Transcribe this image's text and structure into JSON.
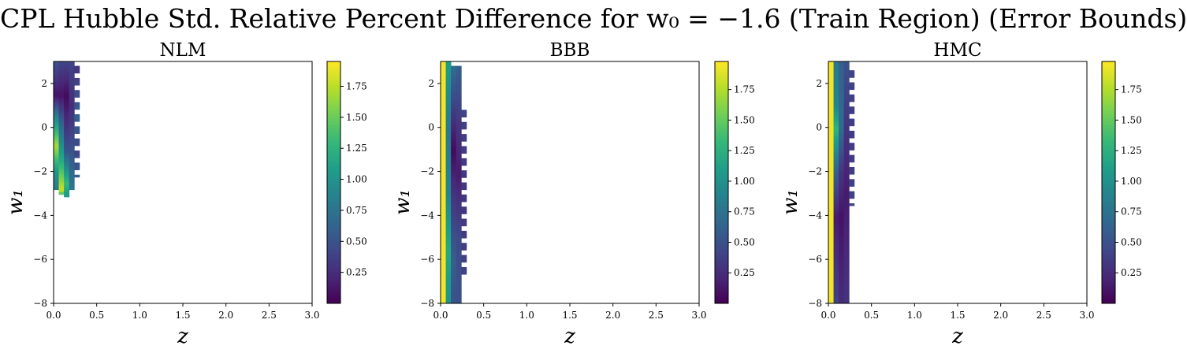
{
  "figure": {
    "title": "CPL Hubble Std. Relative Percent Difference for w₀ = −1.6 (Train Region) (Error Bounds)"
  },
  "colormap": {
    "name": "viridis",
    "stops": [
      "#440154",
      "#482878",
      "#3e4989",
      "#31688e",
      "#26828e",
      "#1f9e89",
      "#35b779",
      "#6ece58",
      "#b5de2b",
      "#fde725"
    ]
  },
  "chart_data": [
    {
      "type": "heatmap",
      "title": "NLM",
      "xlabel": "z",
      "ylabel": "w₁",
      "xlim": [
        0.0,
        3.0
      ],
      "ylim": [
        -8,
        3
      ],
      "xticks": [
        "0.0",
        "0.5",
        "1.0",
        "1.5",
        "2.0",
        "2.5",
        "3.0"
      ],
      "yticks": [
        "−8",
        "−6",
        "−4",
        "−2",
        "0",
        "2"
      ],
      "colorbar": {
        "min": 0.0,
        "max": 1.95,
        "ticks": [
          "0.25",
          "0.50",
          "0.75",
          "1.00",
          "1.25",
          "1.50",
          "1.75"
        ]
      },
      "z_col_width": 0.06,
      "w1_row_height": 0.11,
      "columns": [
        {
          "z": 0.0,
          "w1_from": -2.8,
          "w1_to": 3.0,
          "profile": [
            [
              3.0,
              0.5
            ],
            [
              1.5,
              0.1
            ],
            [
              0.5,
              0.9
            ],
            [
              -0.8,
              1.7
            ],
            [
              -2.0,
              1.0
            ],
            [
              -2.8,
              0.8
            ]
          ]
        },
        {
          "z": 0.06,
          "w1_from": -3.0,
          "w1_to": 3.0,
          "profile": [
            [
              3.0,
              0.4
            ],
            [
              1.5,
              0.1
            ],
            [
              0.0,
              0.7
            ],
            [
              -1.5,
              1.2
            ],
            [
              -2.8,
              1.8
            ],
            [
              -3.0,
              1.3
            ]
          ]
        },
        {
          "z": 0.12,
          "w1_from": -3.1,
          "w1_to": 3.0,
          "profile": [
            [
              3.0,
              0.4
            ],
            [
              1.5,
              0.05
            ],
            [
              0.0,
              0.3
            ],
            [
              -1.0,
              0.5
            ],
            [
              -2.5,
              1.3
            ],
            [
              -3.1,
              1.0
            ]
          ]
        },
        {
          "z": 0.18,
          "w1_from": -2.8,
          "w1_to": 3.0,
          "profile": [
            [
              3.0,
              0.4
            ],
            [
              1.0,
              0.25
            ],
            [
              -1.0,
              0.5
            ],
            [
              -2.8,
              0.8
            ]
          ]
        },
        {
          "z": 0.24,
          "w1_from": -2.2,
          "w1_to": 2.8,
          "profile": [
            [
              2.8,
              0.3
            ],
            [
              0.5,
              0.6
            ],
            [
              -1.0,
              0.4
            ],
            [
              -2.2,
              0.6
            ]
          ],
          "stripes": true
        }
      ]
    },
    {
      "type": "heatmap",
      "title": "BBB",
      "xlabel": "z",
      "ylabel": "w₁",
      "xlim": [
        0.0,
        3.0
      ],
      "ylim": [
        -8,
        3
      ],
      "xticks": [
        "0.0",
        "0.5",
        "1.0",
        "1.5",
        "2.0",
        "2.5",
        "3.0"
      ],
      "yticks": [
        "−8",
        "−6",
        "−4",
        "−2",
        "0",
        "2"
      ],
      "colorbar": {
        "min": 0.0,
        "max": 1.98,
        "ticks": [
          "0.25",
          "0.50",
          "0.75",
          "1.00",
          "1.25",
          "1.50",
          "1.75"
        ]
      },
      "z_col_width": 0.06,
      "w1_row_height": 0.11,
      "columns": [
        {
          "z": 0.0,
          "w1_from": -8.0,
          "w1_to": 3.0,
          "profile": [
            [
              3.0,
              1.95
            ],
            [
              -8.0,
              1.95
            ]
          ]
        },
        {
          "z": 0.06,
          "w1_from": -8.0,
          "w1_to": 3.0,
          "profile": [
            [
              3.0,
              1.1
            ],
            [
              0.0,
              0.8
            ],
            [
              -3.0,
              0.9
            ],
            [
              -5.5,
              1.2
            ],
            [
              -8.0,
              1.0
            ]
          ]
        },
        {
          "z": 0.12,
          "w1_from": -8.0,
          "w1_to": 2.8,
          "profile": [
            [
              2.8,
              0.7
            ],
            [
              0.0,
              0.2
            ],
            [
              -1.0,
              0.05
            ],
            [
              -3.0,
              0.3
            ],
            [
              -6.0,
              0.6
            ],
            [
              -8.0,
              0.5
            ]
          ]
        },
        {
          "z": 0.18,
          "w1_from": -8.0,
          "w1_to": 2.8,
          "profile": [
            [
              2.8,
              0.6
            ],
            [
              0.0,
              0.3
            ],
            [
              -2.0,
              0.15
            ],
            [
              -5.0,
              0.45
            ],
            [
              -8.0,
              0.5
            ]
          ]
        },
        {
          "z": 0.24,
          "w1_from": -6.7,
          "w1_to": 0.8,
          "profile": [
            [
              0.8,
              0.4
            ],
            [
              -3.0,
              0.3
            ],
            [
              -6.7,
              0.4
            ]
          ],
          "stripes": true
        }
      ]
    },
    {
      "type": "heatmap",
      "title": "HMC",
      "xlabel": "z",
      "ylabel": "w₁",
      "xlim": [
        0.0,
        3.0
      ],
      "ylim": [
        -8,
        3
      ],
      "xticks": [
        "0.0",
        "0.5",
        "1.0",
        "1.5",
        "2.0",
        "2.5",
        "3.0"
      ],
      "yticks": [
        "−8",
        "−6",
        "−4",
        "−2",
        "0",
        "2"
      ],
      "colorbar": {
        "min": 0.0,
        "max": 1.98,
        "ticks": [
          "0.25",
          "0.50",
          "0.75",
          "1.00",
          "1.25",
          "1.50",
          "1.75"
        ]
      },
      "z_col_width": 0.06,
      "w1_row_height": 0.11,
      "columns": [
        {
          "z": 0.0,
          "w1_from": -8.0,
          "w1_to": 3.0,
          "profile": [
            [
              3.0,
              1.95
            ],
            [
              -8.0,
              1.95
            ]
          ]
        },
        {
          "z": 0.06,
          "w1_from": -8.0,
          "w1_to": 3.0,
          "profile": [
            [
              3.0,
              0.8
            ],
            [
              1.0,
              0.9
            ],
            [
              0.0,
              1.3
            ],
            [
              -2.0,
              0.6
            ],
            [
              -4.0,
              0.15
            ],
            [
              -8.0,
              0.4
            ]
          ]
        },
        {
          "z": 0.12,
          "w1_from": -8.0,
          "w1_to": 3.0,
          "profile": [
            [
              3.0,
              0.6
            ],
            [
              0.0,
              0.7
            ],
            [
              -2.0,
              0.3
            ],
            [
              -4.0,
              0.1
            ],
            [
              -8.0,
              0.25
            ]
          ]
        },
        {
          "z": 0.18,
          "w1_from": -8.0,
          "w1_to": 3.0,
          "profile": [
            [
              3.0,
              0.5
            ],
            [
              0.0,
              0.3
            ],
            [
              -3.0,
              0.15
            ],
            [
              -8.0,
              0.3
            ]
          ]
        },
        {
          "z": 0.24,
          "w1_from": -3.5,
          "w1_to": 2.6,
          "profile": [
            [
              2.6,
              0.4
            ],
            [
              -1.0,
              0.35
            ],
            [
              -3.5,
              0.4
            ]
          ],
          "stripes": true
        }
      ]
    }
  ]
}
